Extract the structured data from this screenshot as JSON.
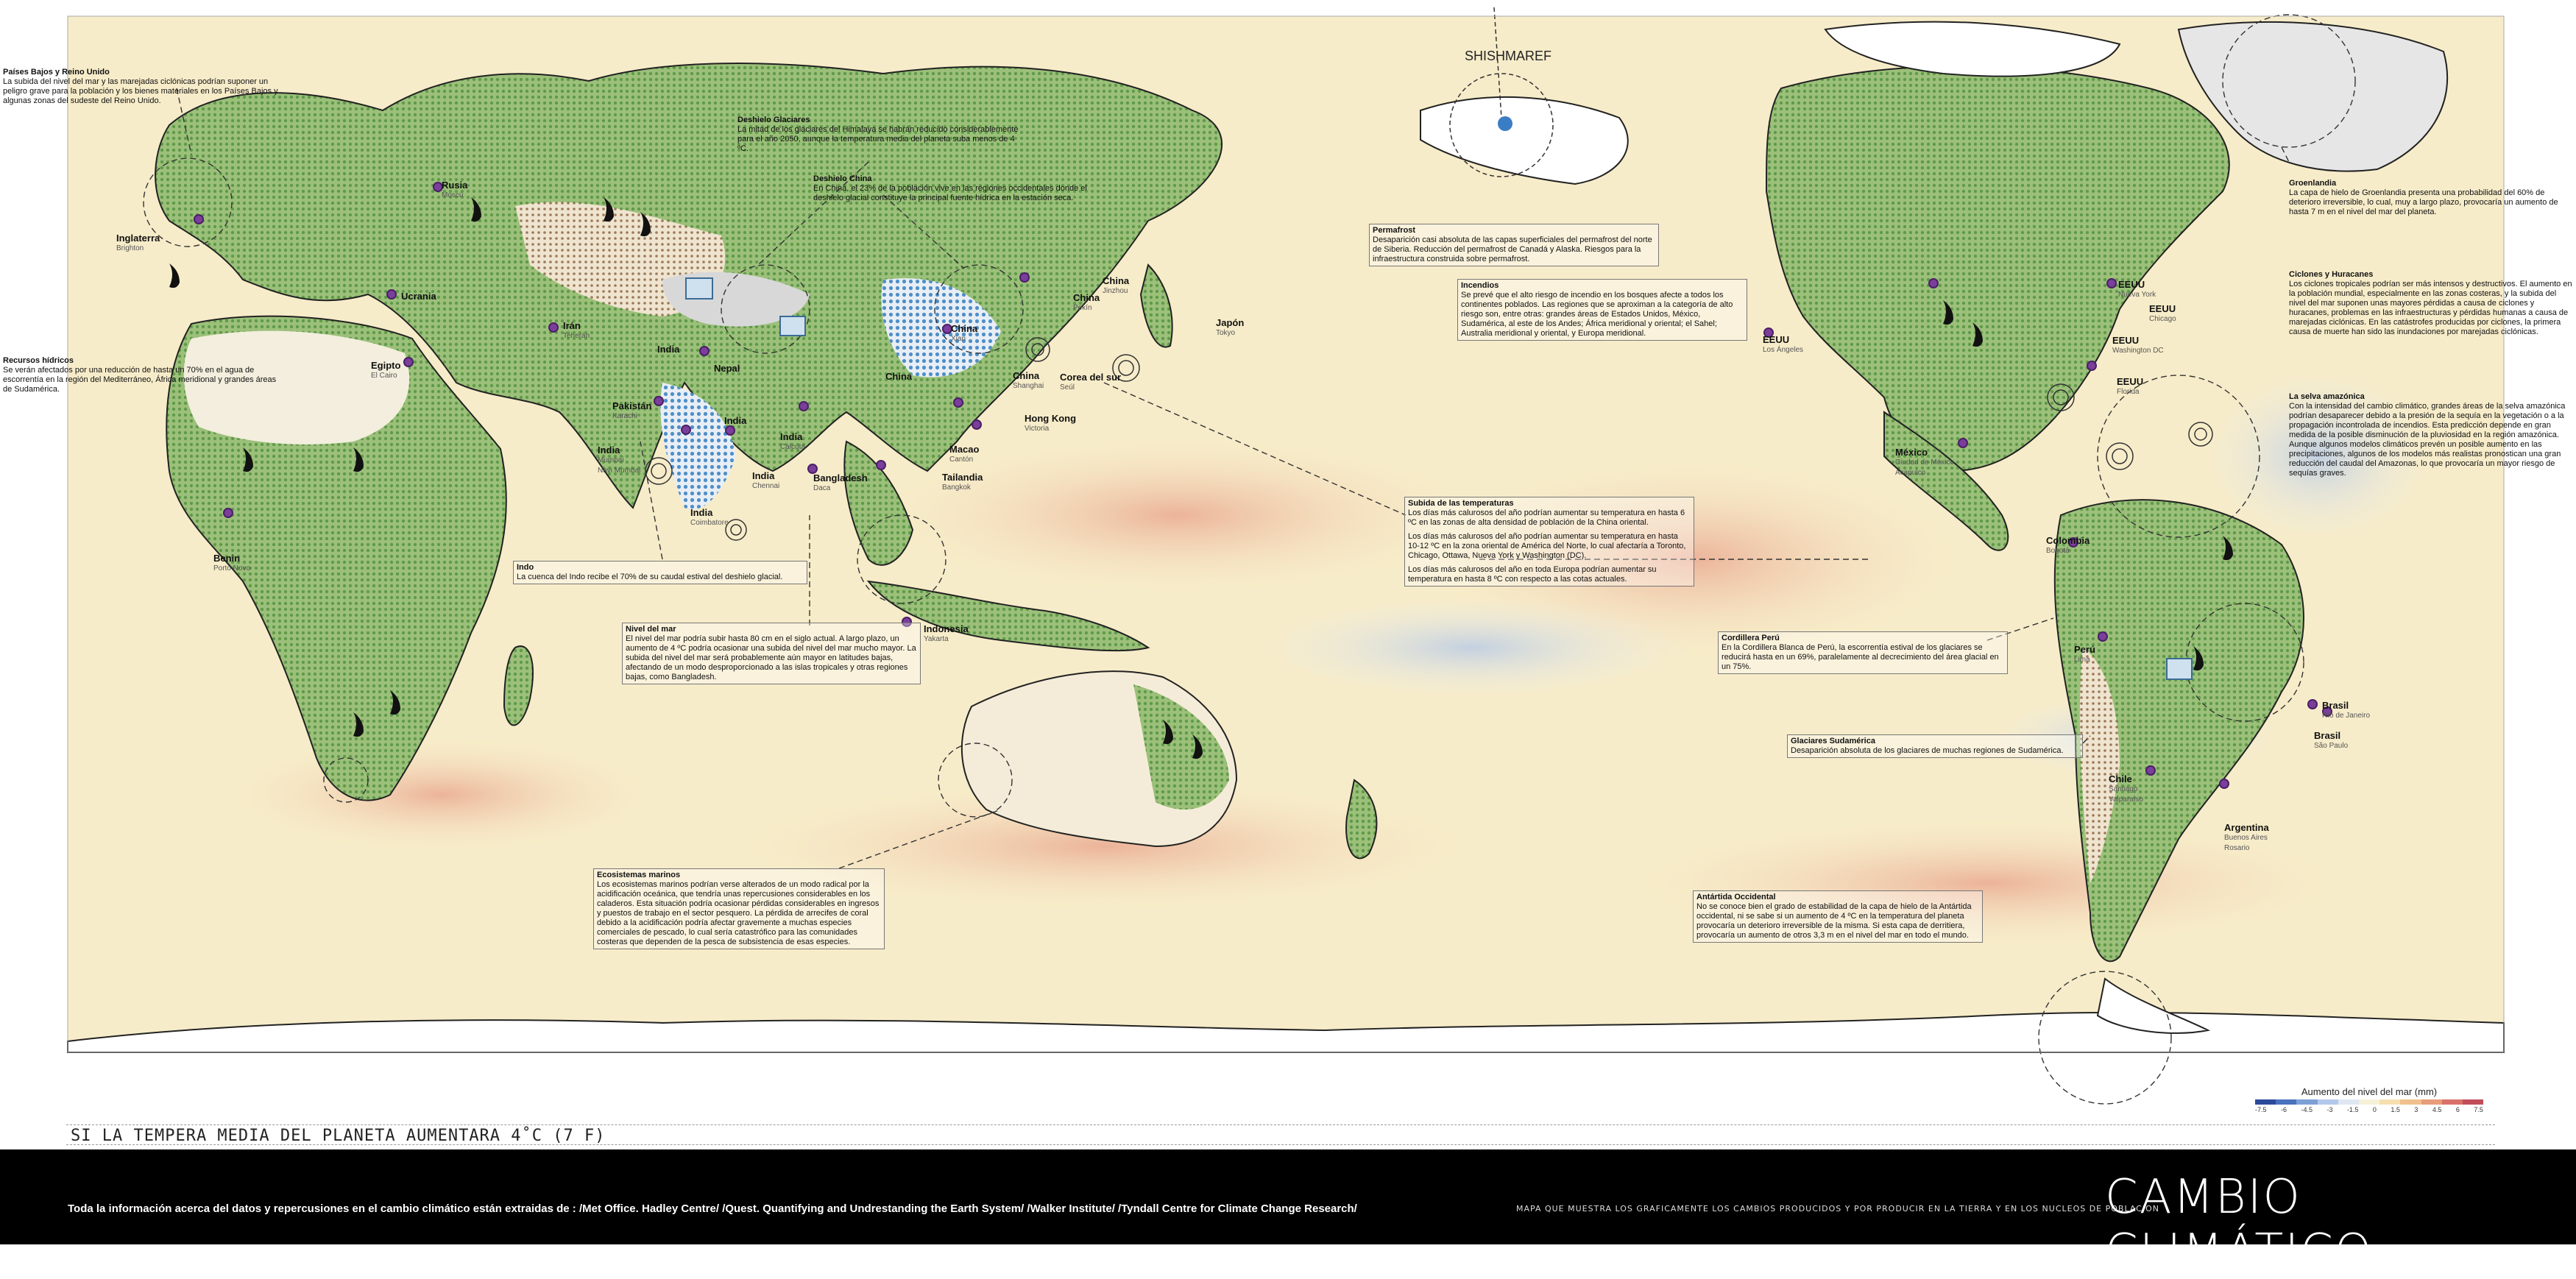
{
  "map_labels": {
    "shishmaref": "SHISHMAREF"
  },
  "notes": {
    "paises_bajos": {
      "title": "Países Bajos y Reino Unido",
      "body": "La subida del nivel del mar y las marejadas ciclónicas podrían suponer un peligro grave para la población y los bienes materiales en los Países Bajos y algunas zonas del sudeste del Reino Unido."
    },
    "recursos_hidricos": {
      "title": "Recursos hídricos",
      "body": "Se verán afectados por una reducción de hasta un 70% en el agua de escorrentía en la región del Mediterráneo, África meridional y grandes áreas de Sudamérica."
    },
    "deshielo_glaciares": {
      "title": "Deshielo Glaciares",
      "body": "La mitad de los glaciares del Himalaya se habrán reducido considerablemente para el año 2050, aunque la temperatura media del planeta suba menos de 4 ºC."
    },
    "deshielo_china": {
      "title": "Deshielo China",
      "body": "En China, el 23% de la población vive en las regiones occidentales donde el deshielo glacial constituye la principal fuente hídrica en la estación seca."
    },
    "permafrost": {
      "title": "Permafrost",
      "body": "Desaparición casi absoluta de las capas superficiales del permafrost del norte de Siberia. Reducción del permafrost de Canadá y Alaska. Riesgos para la infraestructura construida sobre permafrost."
    },
    "incendios": {
      "title": "Incendios",
      "body": "Se prevé que el alto riesgo de incendio en los bosques afecte a todos los continentes poblados. Las regiones que se aproximan a la categoría de alto riesgo son, entre otras: grandes áreas de Estados Unidos, México, Sudamérica, al este de los Andes; África meridional y oriental; el Sahel; Australia meridional y oriental, y Europa meridional."
    },
    "groenlandia": {
      "title": "Groenlandia",
      "body": "La capa de hielo de Groenlandia presenta una probabilidad del 60% de deterioro irreversible, lo cual, muy a largo plazo, provocaría un aumento de hasta 7 m en el nivel del mar del planeta."
    },
    "ciclones": {
      "title": "Ciclones y Huracanes",
      "body": "Los ciclones tropicales podrían ser más intensos y destructivos. El aumento en la población mundial, especialmente en las zonas costeras, y la subida del nivel del mar suponen unas mayores pérdidas a causa de ciclones y huracanes, problemas en las infraestructuras y pérdidas humanas a causa de marejadas ciclónicas. En las catástrofes producidas por ciclones, la primera causa de muerte han sido las inundaciones por marejadas ciclónicas."
    },
    "selva": {
      "title": "La selva amazónica",
      "body": "Con la intensidad del cambio climático, grandes áreas de la selva amazónica podrían desaparecer debido a la presión de la sequía en la vegetación o a la propagación incontrolada de incendios. Esta predicción depende en gran medida de la posible disminución de la pluviosidad en la región amazónica. Aunque algunos modelos climáticos prevén un posible aumento en las precipitaciones, algunos de los modelos más realistas pronostican una gran reducción del caudal del Amazonas, lo que provocaría un mayor riesgo de sequías graves."
    },
    "indo": {
      "title": "Indo",
      "body": "La cuenca del Indo recibe el 70% de su caudal estival del deshielo glacial."
    },
    "nivel_mar": {
      "title": "Nivel del mar",
      "body": "El nivel del mar podría subir hasta 80 cm en el siglo actual. A largo plazo, un aumento de 4 ºC podría ocasionar una subida del nivel del mar mucho mayor. La subida del nivel del mar será probablemente aún mayor en latitudes bajas, afectando de un modo desproporcionado a las islas tropicales y otras regiones bajas, como Bangladesh."
    },
    "temperaturas": {
      "title": "Subida de las temperaturas",
      "body1": "Los días más calurosos del año podrían aumentar su temperatura en hasta 6 ºC en las zonas de alta densidad de población de la China oriental.",
      "body2": "Los días más calurosos del año podrían aumentar su temperatura en hasta 10-12 ºC en la zona oriental de América del Norte, lo cual afectaría a Toronto, Chicago, Ottawa, Nueva York y Washington (DC).",
      "body3": "Los días más calurosos del año en toda Europa podrían aumentar su temperatura en hasta 8 ºC con respecto a las cotas actuales."
    },
    "cordillera_peru": {
      "title": "Cordillera Perú",
      "body": "En la Cordillera Blanca de Perú, la escorrentía estival de los glaciares se reducirá hasta en un 69%, paralelamente al decrecimiento del área glacial en un 75%."
    },
    "glaciares_sud": {
      "title": "Glaciares Sudamérica",
      "body": "Desaparición absoluta de los glaciares de muchas regiones de Sudamérica."
    },
    "ecosistemas": {
      "title": "Ecosistemas marinos",
      "body": "Los ecosistemas marinos podrían verse alterados de un modo radical por la acidificación oceánica, que tendría unas repercusiones considerables en los caladeros. Esta situación podría ocasionar pérdidas considerables en ingresos y puestos de trabajo en el sector pesquero. La pérdida de arrecifes de coral debido a la acidificación podría afectar gravemente a muchas especies comerciales de pescado, lo cual sería catastrófico para las comunidades costeras que dependen de la pesca de subsistencia de esas especies."
    },
    "antartida": {
      "title": "Antártida Occidental",
      "body": "No se conoce bien el grado de estabilidad de la capa de hielo de la Antártida occidental, ni se sabe si un aumento de 4 ºC en la temperatura del planeta provocaría un deterioro irreversible de la misma. Si esta capa de derritiera, provocaría un aumento de otros 3,3 m en el nivel del mar en todo el mundo."
    }
  },
  "cities": [
    {
      "id": "inglaterra",
      "name": "Inglaterra",
      "sub": "Brighton"
    },
    {
      "id": "rusia",
      "name": "Rusia",
      "sub": "Moscú"
    },
    {
      "id": "ucrania",
      "name": "Ucrania",
      "sub": ""
    },
    {
      "id": "iran",
      "name": "Irán",
      "sub": "Teherán"
    },
    {
      "id": "egipto",
      "name": "Egipto",
      "sub": "El Cairo"
    },
    {
      "id": "india1",
      "name": "India",
      "sub": ""
    },
    {
      "id": "nepal",
      "name": "Nepal",
      "sub": ""
    },
    {
      "id": "pakistan",
      "name": "Pakistán",
      "sub": "Karachi"
    },
    {
      "id": "india_mumbai",
      "name": "India",
      "sub": "Mumbai\nNavi Mumbai"
    },
    {
      "id": "india2",
      "name": "India",
      "sub": ""
    },
    {
      "id": "india_calcuta",
      "name": "India",
      "sub": "Calcuta"
    },
    {
      "id": "india_chennai",
      "name": "India",
      "sub": "Chennai"
    },
    {
      "id": "india_coim",
      "name": "India",
      "sub": "Coimbatore"
    },
    {
      "id": "bangladesh",
      "name": "Bangladesh",
      "sub": "Daca"
    },
    {
      "id": "china_jinzhou",
      "name": "China",
      "sub": "Jinzhou"
    },
    {
      "id": "china_pekin",
      "name": "China",
      "sub": "Pekín"
    },
    {
      "id": "china_x",
      "name": "China",
      "sub": "Xian"
    },
    {
      "id": "china_c",
      "name": "China",
      "sub": ""
    },
    {
      "id": "china_shanghai",
      "name": "China",
      "sub": "Shanghai"
    },
    {
      "id": "corea",
      "name": "Corea del sur",
      "sub": "Seúl"
    },
    {
      "id": "japon",
      "name": "Japón",
      "sub": "Tokyo"
    },
    {
      "id": "hongkong",
      "name": "Hong Kong",
      "sub": "Victoria"
    },
    {
      "id": "macao",
      "name": "Macao",
      "sub": "Cantón"
    },
    {
      "id": "tailandia",
      "name": "Tailandia",
      "sub": "Bangkok"
    },
    {
      "id": "indonesia",
      "name": "Indonesia",
      "sub": "Yakarta"
    },
    {
      "id": "benin",
      "name": "Benin",
      "sub": "Porto Novo"
    },
    {
      "id": "eeuu_la",
      "name": "EEUU",
      "sub": "Los Ángeles"
    },
    {
      "id": "eeuu_ny",
      "name": "EEUU",
      "sub": "Nueva York"
    },
    {
      "id": "eeuu_chi",
      "name": "EEUU",
      "sub": "Chicago"
    },
    {
      "id": "eeuu_dc",
      "name": "EEUU",
      "sub": "Washington DC"
    },
    {
      "id": "eeuu_fl",
      "name": "EEUU",
      "sub": "Florida"
    },
    {
      "id": "mexico",
      "name": "México",
      "sub": "Ciudad de México\nAcapulco"
    },
    {
      "id": "colombia",
      "name": "Colombia",
      "sub": "Bogotá"
    },
    {
      "id": "peru",
      "name": "Perú",
      "sub": "Lima"
    },
    {
      "id": "brasil_rio",
      "name": "Brasil",
      "sub": "Río de Janeiro"
    },
    {
      "id": "brasil_sp",
      "name": "Brasil",
      "sub": "São Paulo"
    },
    {
      "id": "chile",
      "name": "Chile",
      "sub": "Santiago\nValparaíso"
    },
    {
      "id": "argentina",
      "name": "Argentina",
      "sub": "Buenos Aires\nRosario"
    }
  ],
  "legend": {
    "title": "Aumento del nivel del mar (mm)",
    "ticks": [
      "-7.5",
      "-6",
      "-4.5",
      "-3",
      "-1.5",
      "0",
      "1.5",
      "3",
      "4.5",
      "6",
      "7.5"
    ],
    "colors": [
      "#2c4a9a",
      "#4a72bd",
      "#7ea0d6",
      "#b3c8ea",
      "#dfe7f3",
      "#f6f2d8",
      "#f6e0b0",
      "#f1c08e",
      "#e89c7a",
      "#d9716a",
      "#c24d5a"
    ]
  },
  "subtitle": "SI LA TEMPERA MEDIA DEL PLANETA AUMENTARA 4˚C (7 F)",
  "footer": {
    "sources": "Toda la información acerca del datos y repercusiones en el cambio climático están extraidas de :   /Met Office. Hadley Centre/    /Quest. Quantifying and Undrestanding the Earth System/   /Walker Institute/   /Tyndall Centre for Climate Change Research/",
    "description": "MAPA QUE MUESTRA LOS GRAFICAMENTE LOS CAMBIOS PRODUCIDOS Y POR PRODUCIR EN LA TIERRA Y EN LOS NUCLEOS DE POBLACION",
    "title": "CAMBIO CLIMÁTICO"
  }
}
